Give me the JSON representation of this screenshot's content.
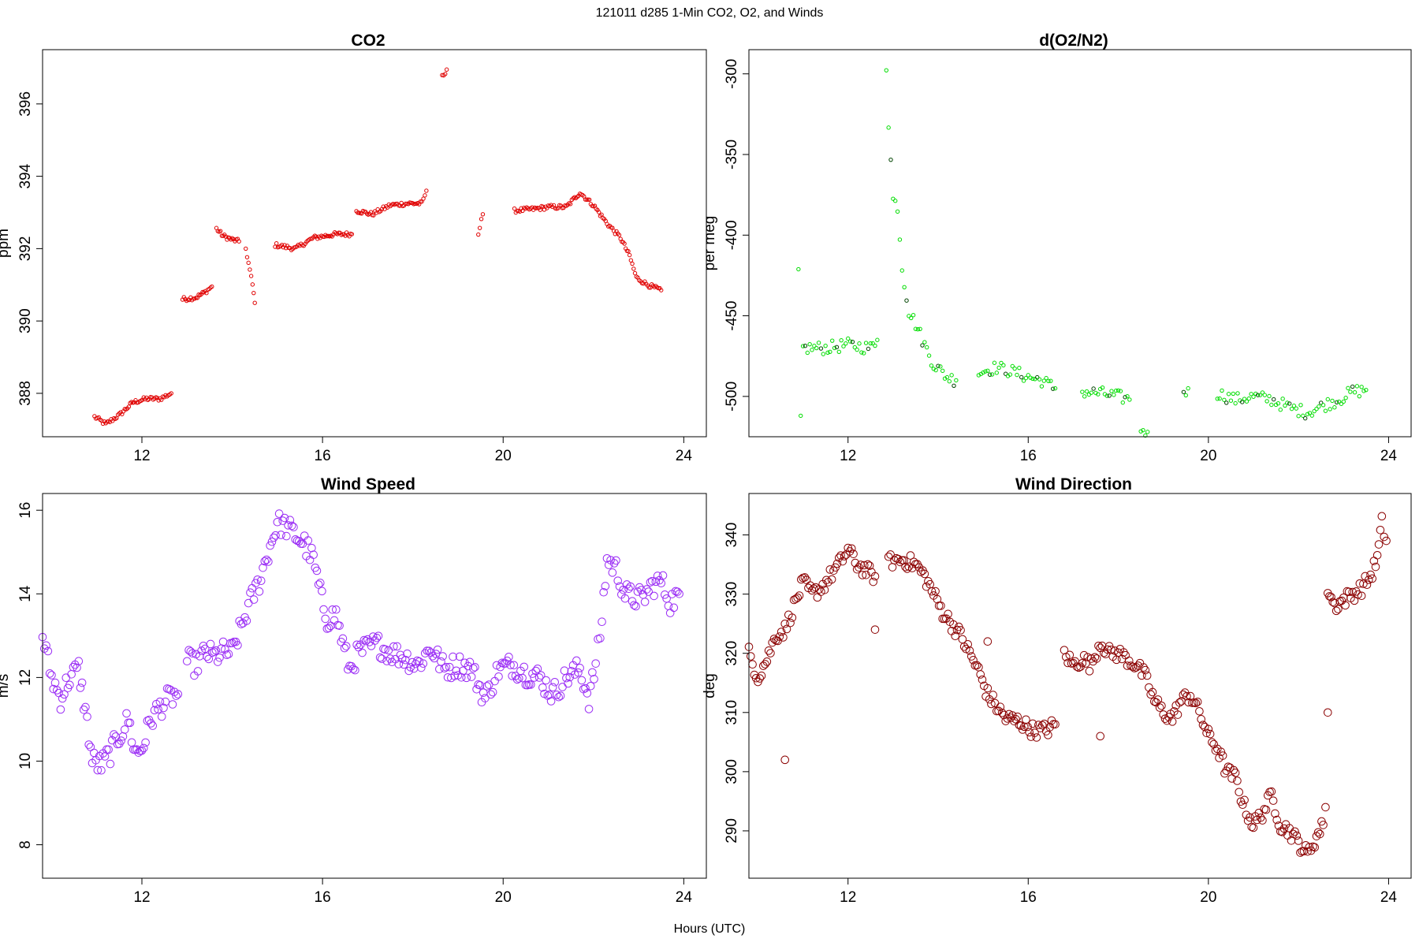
{
  "figure": {
    "title": "121011   d285   1-Min CO2, O2, and Winds",
    "xlabel": "Hours (UTC)"
  },
  "colors": {
    "co2": "#e00000",
    "o2": "#00dd00",
    "o2_dark": "#004400",
    "wind_speed": "#9a2cf5",
    "wind_direction": "#8b0000"
  },
  "chart_data": [
    {
      "id": "co2",
      "type": "scatter",
      "title": "CO2",
      "ylabel": "ppm",
      "xlim": [
        9.8,
        24.5
      ],
      "ylim": [
        386.8,
        397.5
      ],
      "xticks": [
        12,
        16,
        20,
        24
      ],
      "yticks": [
        388,
        390,
        392,
        394,
        396
      ],
      "marker_size": "small",
      "anchors": [
        [
          10.95,
          387.35
        ],
        [
          11.2,
          387.15
        ],
        [
          11.5,
          387.4
        ],
        [
          11.8,
          387.75
        ],
        [
          12.1,
          387.85
        ],
        [
          12.4,
          387.85
        ],
        [
          12.65,
          388.0
        ],
        null,
        [
          12.9,
          390.6
        ],
        [
          13.2,
          390.65
        ],
        [
          13.4,
          390.8
        ],
        [
          13.55,
          390.95
        ],
        null,
        [
          13.65,
          392.55
        ],
        [
          13.8,
          392.35
        ],
        [
          14.0,
          392.25
        ],
        [
          14.15,
          392.2
        ],
        null,
        [
          14.3,
          392.0
        ],
        [
          14.45,
          391.0
        ],
        [
          14.5,
          390.5
        ],
        null,
        [
          14.95,
          392.1
        ],
        [
          15.4,
          392.0
        ],
        [
          15.8,
          392.3
        ],
        [
          16.3,
          392.4
        ],
        [
          16.65,
          392.4
        ],
        null,
        [
          16.75,
          393.05
        ],
        [
          17.1,
          392.95
        ],
        [
          17.5,
          393.2
        ],
        [
          17.9,
          393.25
        ],
        [
          18.2,
          393.25
        ],
        [
          18.3,
          393.6
        ],
        null,
        [
          18.65,
          396.75
        ],
        [
          18.75,
          396.95
        ],
        null,
        [
          19.45,
          392.4
        ],
        [
          19.55,
          392.95
        ],
        null,
        [
          20.25,
          393.05
        ],
        [
          20.7,
          393.1
        ],
        [
          21.0,
          393.15
        ],
        [
          21.4,
          393.15
        ],
        [
          21.7,
          393.55
        ],
        [
          22.0,
          393.2
        ],
        [
          22.3,
          392.7
        ],
        [
          22.6,
          392.3
        ],
        [
          22.8,
          391.8
        ],
        [
          22.95,
          391.2
        ],
        [
          23.2,
          391.0
        ],
        [
          23.5,
          390.85
        ]
      ]
    },
    {
      "id": "o2",
      "type": "scatter",
      "title": "d(O2/N2)",
      "ylabel": "per meg",
      "xlim": [
        9.8,
        24.5
      ],
      "ylim": [
        -525,
        -285
      ],
      "xticks": [
        12,
        16,
        20,
        24
      ],
      "yticks": [
        -300,
        -350,
        -400,
        -450,
        -500
      ],
      "marker_size": "small",
      "anchors": [
        [
          10.9,
          -425
        ],
        [
          10.95,
          -512
        ],
        null,
        [
          11.0,
          -470
        ],
        [
          11.5,
          -470
        ],
        [
          12.0,
          -468
        ],
        [
          12.5,
          -470
        ],
        [
          12.65,
          -465
        ],
        null,
        [
          12.85,
          -295
        ],
        [
          12.9,
          -330
        ],
        [
          13.0,
          -378
        ],
        [
          13.1,
          -382
        ],
        [
          13.2,
          -420
        ],
        [
          13.35,
          -447
        ],
        [
          13.5,
          -455
        ],
        [
          13.7,
          -468
        ],
        [
          13.9,
          -480
        ],
        [
          14.2,
          -488
        ],
        [
          14.4,
          -490
        ],
        null,
        [
          14.9,
          -485
        ],
        [
          15.3,
          -482
        ],
        [
          15.7,
          -485
        ],
        [
          16.0,
          -488
        ],
        [
          16.3,
          -490
        ],
        [
          16.6,
          -495
        ],
        null,
        [
          17.2,
          -497
        ],
        [
          17.6,
          -498
        ],
        [
          18.0,
          -500
        ],
        [
          18.25,
          -502
        ],
        null,
        [
          18.5,
          -520
        ],
        [
          18.65,
          -522
        ],
        null,
        [
          19.45,
          -500
        ],
        [
          19.55,
          -495
        ],
        null,
        [
          20.2,
          -498
        ],
        [
          20.6,
          -502
        ],
        [
          21.0,
          -500
        ],
        [
          21.4,
          -502
        ],
        [
          21.8,
          -507
        ],
        [
          22.2,
          -510
        ],
        [
          22.6,
          -505
        ],
        [
          22.9,
          -502
        ],
        [
          23.2,
          -497
        ],
        [
          23.5,
          -496
        ]
      ]
    },
    {
      "id": "wind_speed",
      "type": "scatter",
      "title": "Wind Speed",
      "ylabel": "m/s",
      "xlim": [
        9.8,
        24.5
      ],
      "ylim": [
        7.2,
        16.4
      ],
      "xticks": [
        12,
        16,
        20,
        24
      ],
      "yticks": [
        8,
        10,
        12,
        14,
        16
      ],
      "marker_size": "large",
      "anchors": [
        [
          9.8,
          13.0
        ],
        [
          10.0,
          12.0
        ],
        [
          10.2,
          11.5
        ],
        [
          10.4,
          12.0
        ],
        [
          10.6,
          12.2
        ],
        [
          10.75,
          11.2
        ],
        [
          10.9,
          10.0
        ],
        [
          11.1,
          9.9
        ],
        [
          11.3,
          10.2
        ],
        [
          11.5,
          10.6
        ],
        [
          11.7,
          11.0
        ],
        [
          11.85,
          10.2
        ],
        [
          12.0,
          10.3
        ],
        [
          12.2,
          11.0
        ],
        [
          12.4,
          11.3
        ],
        [
          12.6,
          11.5
        ],
        [
          12.8,
          11.6
        ],
        null,
        [
          13.0,
          12.4
        ],
        [
          13.2,
          12.3
        ],
        [
          13.4,
          12.6
        ],
        [
          13.6,
          12.5
        ],
        [
          13.8,
          12.6
        ],
        [
          14.0,
          12.6
        ],
        [
          14.2,
          13.2
        ],
        [
          14.4,
          13.8
        ],
        [
          14.6,
          14.3
        ],
        [
          14.8,
          15.0
        ],
        [
          15.0,
          15.7
        ],
        [
          15.2,
          15.6
        ],
        [
          15.4,
          15.4
        ],
        [
          15.6,
          15.2
        ],
        [
          15.8,
          14.8
        ],
        [
          15.95,
          14.0
        ],
        [
          16.1,
          13.4
        ],
        [
          16.3,
          13.5
        ],
        [
          16.45,
          12.8
        ],
        [
          16.6,
          12.2
        ],
        [
          16.8,
          12.6
        ],
        [
          17.0,
          12.7
        ],
        [
          17.2,
          12.8
        ],
        [
          17.5,
          12.6
        ],
        [
          17.8,
          12.5
        ],
        [
          18.1,
          12.3
        ],
        [
          18.4,
          12.7
        ],
        [
          18.7,
          12.2
        ],
        [
          19.0,
          12.3
        ],
        [
          19.3,
          12.2
        ],
        [
          19.6,
          11.5
        ],
        [
          19.9,
          12.2
        ],
        [
          20.2,
          12.3
        ],
        [
          20.5,
          12.1
        ],
        [
          20.8,
          12.0
        ],
        [
          21.1,
          11.6
        ],
        [
          21.4,
          12.0
        ],
        [
          21.7,
          12.2
        ],
        [
          21.9,
          11.5
        ],
        [
          22.05,
          12.3
        ],
        [
          22.15,
          13.0
        ],
        [
          22.3,
          14.8
        ],
        [
          22.5,
          14.6
        ],
        [
          22.7,
          14.0
        ],
        [
          22.9,
          13.9
        ],
        [
          23.1,
          13.9
        ],
        [
          23.3,
          14.2
        ],
        [
          23.5,
          14.3
        ],
        [
          23.7,
          13.8
        ],
        [
          23.9,
          14.0
        ]
      ]
    },
    {
      "id": "wind_direction",
      "type": "scatter",
      "title": "Wind Direction",
      "ylabel": "deg",
      "xlim": [
        9.8,
        24.5
      ],
      "ylim": [
        282,
        347
      ],
      "xticks": [
        12,
        16,
        20,
        24
      ],
      "yticks": [
        290,
        300,
        310,
        320,
        330,
        340
      ],
      "marker_size": "large",
      "anchors": [
        [
          9.8,
          320
        ],
        [
          10.0,
          316
        ],
        [
          10.2,
          319
        ],
        [
          10.4,
          323
        ],
        [
          10.6,
          324
        ],
        [
          10.8,
          328
        ],
        [
          11.0,
          332
        ],
        [
          11.2,
          330
        ],
        [
          11.4,
          331
        ],
        [
          11.6,
          333
        ],
        [
          11.8,
          335
        ],
        [
          12.0,
          337.5
        ],
        [
          12.2,
          335
        ],
        [
          12.4,
          334
        ],
        [
          12.6,
          333
        ],
        null,
        [
          12.9,
          335.5
        ],
        [
          13.2,
          335.8
        ],
        [
          13.5,
          335.0
        ],
        [
          13.7,
          333
        ],
        [
          13.9,
          330
        ],
        [
          14.1,
          327
        ],
        [
          14.3,
          325
        ],
        [
          14.5,
          323
        ],
        [
          14.7,
          320
        ],
        [
          14.9,
          317
        ],
        [
          15.1,
          313
        ],
        [
          15.3,
          311
        ],
        [
          15.5,
          309
        ],
        [
          15.8,
          308.5
        ],
        [
          16.1,
          307
        ],
        [
          16.4,
          307
        ],
        [
          16.6,
          308
        ],
        null,
        [
          16.8,
          320
        ],
        [
          17.0,
          318
        ],
        [
          17.2,
          319
        ],
        [
          17.4,
          318
        ],
        [
          17.6,
          322
        ],
        [
          17.8,
          320
        ],
        [
          18.0,
          320
        ],
        [
          18.2,
          319
        ],
        [
          18.4,
          318
        ],
        [
          18.6,
          316
        ],
        [
          18.8,
          312
        ],
        [
          19.0,
          310
        ],
        [
          19.2,
          309
        ],
        [
          19.4,
          312
        ],
        [
          19.6,
          313
        ],
        [
          19.8,
          310
        ],
        [
          20.0,
          306
        ],
        [
          20.2,
          304
        ],
        [
          20.4,
          300
        ],
        [
          20.6,
          299
        ],
        [
          20.8,
          294
        ],
        [
          21.0,
          291
        ],
        [
          21.2,
          293
        ],
        [
          21.4,
          296
        ],
        [
          21.6,
          291
        ],
        [
          21.8,
          290
        ],
        [
          22.0,
          288
        ],
        [
          22.2,
          286
        ],
        [
          22.4,
          289
        ],
        [
          22.55,
          291
        ],
        null,
        [
          22.65,
          331
        ],
        [
          22.8,
          328
        ],
        [
          23.0,
          329
        ],
        [
          23.2,
          330
        ],
        [
          23.4,
          331
        ],
        [
          23.6,
          333
        ],
        [
          23.75,
          336
        ],
        [
          23.85,
          342
        ],
        [
          23.95,
          339
        ]
      ],
      "outliers": [
        [
          10.6,
          302
        ],
        [
          12.6,
          324
        ],
        [
          15.1,
          322
        ],
        [
          17.6,
          306
        ],
        [
          22.65,
          310
        ],
        [
          22.6,
          294
        ]
      ]
    }
  ]
}
